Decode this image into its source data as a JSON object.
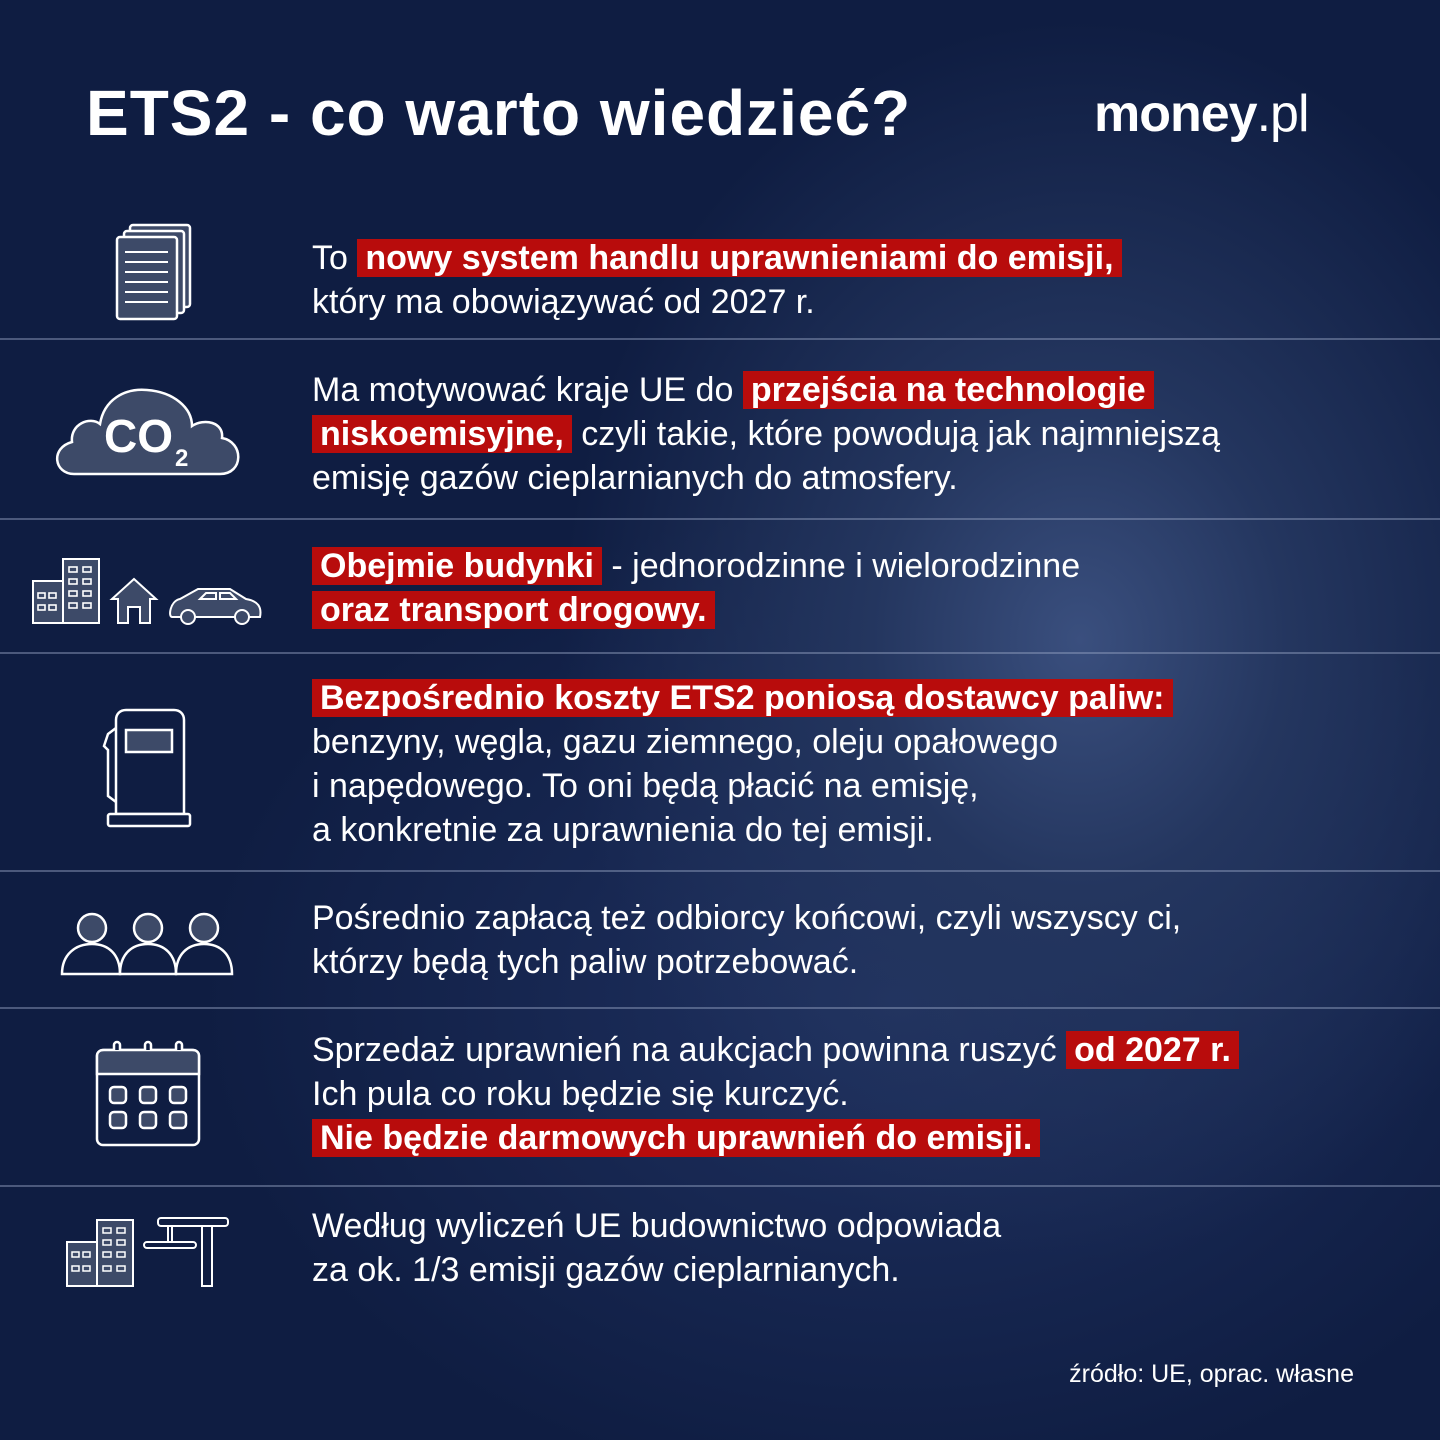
{
  "header": {
    "title": "ETS2 - co warto wiedzieć?",
    "logo_main": "money",
    "logo_suffix": ".pl"
  },
  "colors": {
    "background": "#0f1d42",
    "highlight": "#b80c0c",
    "icon_fill": "#3d4a68"
  },
  "rows": [
    {
      "icon": "documents-icon",
      "lines": [
        [
          {
            "t": "To "
          },
          {
            "t": "nowy system handlu uprawnieniami do emisji,",
            "hl": true
          }
        ],
        [
          {
            "t": "który ma obowiązywać od 2027 r."
          }
        ]
      ]
    },
    {
      "icon": "co2-cloud-icon",
      "icon_text": "CO",
      "icon_sub": "2",
      "lines": [
        [
          {
            "t": "Ma motywować kraje UE do "
          },
          {
            "t": "przejścia na technologie",
            "hl": true
          }
        ],
        [
          {
            "t": "niskoemisyjne,",
            "hl": true
          },
          {
            "t": "  czyli takie, które powodują jak najmniejszą"
          }
        ],
        [
          {
            "t": "emisję gazów cieplarnianych do atmosfery."
          }
        ]
      ]
    },
    {
      "icon": "buildings-house-car-icon",
      "lines": [
        [
          {
            "t": "Obejmie budynki",
            "hl": true
          },
          {
            "t": " - jednorodzinne i wielorodzinne"
          }
        ],
        [
          {
            "t": "oraz transport drogowy.",
            "hl": true
          }
        ]
      ]
    },
    {
      "icon": "fuel-pump-icon",
      "lines": [
        [
          {
            "t": "Bezpośrednio koszty ETS2 poniosą dostawcy paliw:",
            "hl": true
          }
        ],
        [
          {
            "t": "benzyny, węgla, gazu ziemnego, oleju opałowego"
          }
        ],
        [
          {
            "t": "i napędowego. To oni będą płacić na emisję,"
          }
        ],
        [
          {
            "t": "a konkretnie za uprawnienia do tej emisji."
          }
        ]
      ]
    },
    {
      "icon": "people-icon",
      "lines": [
        [
          {
            "t": "Pośrednio zapłacą też odbiorcy końcowi, czyli wszyscy ci,"
          }
        ],
        [
          {
            "t": "którzy będą tych paliw potrzebować."
          }
        ]
      ]
    },
    {
      "icon": "calendar-icon",
      "lines": [
        [
          {
            "t": "Sprzedaż uprawnień na aukcjach powinna ruszyć "
          },
          {
            "t": "od 2027 r.",
            "hl": true
          }
        ],
        [
          {
            "t": "Ich pula co roku będzie się kurczyć."
          }
        ],
        [
          {
            "t": "Nie będzie darmowych uprawnień do emisji.",
            "hl": true
          }
        ]
      ]
    },
    {
      "icon": "construction-icon",
      "lines": [
        [
          {
            "t": "Według wyliczeń UE budownictwo odpowiada"
          }
        ],
        [
          {
            "t": "za ok. 1/3 emisji gazów cieplarnianych."
          }
        ]
      ]
    }
  ],
  "footer": {
    "source": "źródło: UE, oprac. własne"
  }
}
